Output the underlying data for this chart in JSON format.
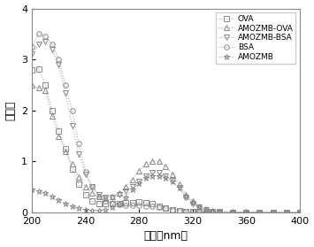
{
  "xlabel": "波长（nm）",
  "ylabel": "吸光値",
  "xlim": [
    200,
    400
  ],
  "ylim": [
    0,
    4
  ],
  "xticks": [
    200,
    240,
    280,
    320,
    360,
    400
  ],
  "yticks": [
    0,
    1,
    2,
    3,
    4
  ],
  "line_color": "#aaaaaa",
  "marker_color": "#888888",
  "series": {
    "OVA": {
      "marker": "s",
      "markersize": 4,
      "x": [
        200,
        205,
        210,
        215,
        220,
        225,
        230,
        235,
        240,
        245,
        250,
        255,
        260,
        265,
        270,
        275,
        280,
        285,
        290,
        295,
        300,
        305,
        310,
        315,
        320,
        325,
        330,
        335,
        340,
        350,
        360,
        370,
        380,
        390,
        400
      ],
      "y": [
        2.8,
        2.82,
        2.5,
        2.0,
        1.6,
        1.25,
        0.85,
        0.55,
        0.35,
        0.22,
        0.18,
        0.17,
        0.17,
        0.18,
        0.19,
        0.2,
        0.21,
        0.2,
        0.17,
        0.13,
        0.09,
        0.06,
        0.04,
        0.02,
        0.01,
        0.01,
        0.005,
        0.005,
        0.005,
        0.005,
        0.005,
        0.005,
        0.0,
        0.0,
        0.0
      ]
    },
    "AMOZMB-OVA": {
      "marker": "^",
      "markersize": 5,
      "x": [
        200,
        205,
        210,
        215,
        220,
        225,
        230,
        235,
        240,
        245,
        250,
        255,
        260,
        265,
        270,
        275,
        280,
        285,
        290,
        295,
        300,
        305,
        310,
        315,
        320,
        325,
        330,
        335,
        340,
        350,
        360,
        370,
        380,
        390,
        400
      ],
      "y": [
        2.5,
        2.45,
        2.4,
        1.9,
        1.5,
        1.2,
        0.95,
        0.7,
        0.5,
        0.38,
        0.32,
        0.3,
        0.32,
        0.38,
        0.5,
        0.65,
        0.82,
        0.95,
        1.0,
        1.0,
        0.9,
        0.75,
        0.55,
        0.35,
        0.22,
        0.12,
        0.07,
        0.04,
        0.02,
        0.01,
        0.005,
        0.005,
        0.0,
        0.0,
        0.0
      ]
    },
    "AMOZMB-BSA": {
      "marker": "v",
      "markersize": 5,
      "x": [
        200,
        205,
        210,
        215,
        220,
        225,
        230,
        235,
        240,
        245,
        250,
        255,
        260,
        265,
        270,
        275,
        280,
        285,
        290,
        295,
        300,
        305,
        310,
        315,
        320,
        325,
        330,
        335,
        340,
        350,
        360,
        370,
        380,
        390,
        400
      ],
      "y": [
        3.1,
        3.3,
        3.35,
        3.2,
        2.9,
        2.35,
        1.7,
        1.15,
        0.75,
        0.5,
        0.35,
        0.3,
        0.3,
        0.35,
        0.42,
        0.5,
        0.6,
        0.72,
        0.78,
        0.78,
        0.72,
        0.62,
        0.48,
        0.3,
        0.18,
        0.1,
        0.05,
        0.02,
        0.01,
        0.005,
        0.005,
        0.005,
        0.0,
        0.0,
        0.0
      ]
    },
    "BSA": {
      "marker": "o",
      "markersize": 4,
      "x": [
        200,
        205,
        210,
        215,
        220,
        225,
        230,
        235,
        240,
        245,
        250,
        255,
        260,
        265,
        270,
        275,
        280,
        285,
        290,
        295,
        300,
        305,
        310,
        315,
        320,
        325,
        330,
        335,
        340,
        350,
        360,
        370,
        380,
        390,
        400
      ],
      "y": [
        3.25,
        3.5,
        3.45,
        3.3,
        3.0,
        2.5,
        2.0,
        1.35,
        0.8,
        0.5,
        0.32,
        0.22,
        0.18,
        0.15,
        0.14,
        0.14,
        0.14,
        0.13,
        0.12,
        0.1,
        0.08,
        0.06,
        0.04,
        0.02,
        0.01,
        0.005,
        0.005,
        0.005,
        0.005,
        0.005,
        0.0,
        0.0,
        0.0,
        0.0,
        0.0
      ]
    },
    "AMOZMB": {
      "marker": "*",
      "markersize": 5,
      "x": [
        200,
        205,
        210,
        215,
        220,
        225,
        230,
        235,
        240,
        245,
        250,
        255,
        260,
        265,
        270,
        275,
        280,
        285,
        290,
        295,
        300,
        305,
        310,
        315,
        320,
        325,
        330,
        335,
        340,
        350,
        360,
        370,
        380,
        390,
        400
      ],
      "y": [
        0.45,
        0.42,
        0.38,
        0.32,
        0.25,
        0.18,
        0.12,
        0.08,
        0.05,
        0.04,
        0.04,
        0.06,
        0.1,
        0.18,
        0.3,
        0.45,
        0.58,
        0.68,
        0.72,
        0.72,
        0.68,
        0.6,
        0.48,
        0.32,
        0.2,
        0.1,
        0.05,
        0.02,
        0.01,
        0.005,
        0.005,
        0.005,
        0.0,
        0.0,
        0.0
      ]
    }
  }
}
